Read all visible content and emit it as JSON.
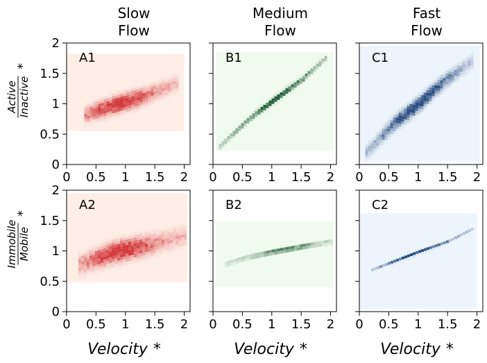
{
  "chart_data": {
    "type": "heatmap",
    "columns": [
      {
        "title_line1": "Slow",
        "title_line2": "Flow",
        "color": "#cb181d",
        "light": "#fee0d2"
      },
      {
        "title_line1": "Medium",
        "title_line2": "Flow",
        "color": "#00441b",
        "light": "#e5f5e0"
      },
      {
        "title_line1": "Fast",
        "title_line2": "Flow",
        "color": "#08306b",
        "light": "#deebf7"
      }
    ],
    "rows": [
      {
        "ylabel_num": "Active",
        "ylabel_den": "Inactive",
        "star": "*"
      },
      {
        "ylabel_num": "Immobile",
        "ylabel_den": "Mobile",
        "star": "*"
      }
    ],
    "panels": [
      {
        "label": "A1",
        "bg_x": [
          0.0,
          2.0
        ],
        "bg_y": [
          0.55,
          1.82
        ],
        "trend": [
          [
            0.3,
            0.82
          ],
          [
            0.8,
            0.98
          ],
          [
            1.3,
            1.12
          ],
          [
            1.9,
            1.35
          ]
        ],
        "spread": 0.14,
        "peak_x": 0.9
      },
      {
        "label": "B1",
        "bg_x": [
          0.05,
          2.05
        ],
        "bg_y": [
          0.22,
          1.85
        ],
        "trend": [
          [
            0.1,
            0.3
          ],
          [
            0.6,
            0.75
          ],
          [
            1.0,
            1.05
          ],
          [
            1.5,
            1.4
          ],
          [
            1.9,
            1.75
          ]
        ],
        "spread": 0.05,
        "peak_x": 1.05
      },
      {
        "label": "C1",
        "bg_x": [
          0.0,
          2.05
        ],
        "bg_y": [
          0.05,
          1.95
        ],
        "trend": [
          [
            0.1,
            0.2
          ],
          [
            0.6,
            0.7
          ],
          [
            1.0,
            1.0
          ],
          [
            1.4,
            1.35
          ],
          [
            1.9,
            1.7
          ]
        ],
        "spread": 0.12,
        "peak_x": 0.95
      },
      {
        "label": "A2",
        "bg_x": [
          0.0,
          2.05
        ],
        "bg_y": [
          0.48,
          1.95
        ],
        "trend": [
          [
            0.2,
            0.78
          ],
          [
            0.8,
            0.98
          ],
          [
            1.3,
            1.08
          ],
          [
            2.0,
            1.25
          ]
        ],
        "spread": 0.17,
        "peak_x": 0.9
      },
      {
        "label": "B2",
        "bg_x": [
          0.05,
          2.05
        ],
        "bg_y": [
          0.4,
          1.48
        ],
        "trend": [
          [
            0.2,
            0.78
          ],
          [
            0.6,
            0.9
          ],
          [
            1.0,
            0.98
          ],
          [
            1.5,
            1.07
          ],
          [
            2.0,
            1.15
          ]
        ],
        "spread": 0.03,
        "peak_x": 1.2
      },
      {
        "label": "C2",
        "bg_x": [
          0.0,
          2.0
        ],
        "bg_y": [
          0.05,
          1.62
        ],
        "trend": [
          [
            0.2,
            0.68
          ],
          [
            0.6,
            0.83
          ],
          [
            1.0,
            0.98
          ],
          [
            1.5,
            1.15
          ],
          [
            1.9,
            1.35
          ]
        ],
        "spread": 0.025,
        "peak_x": 0.95
      }
    ],
    "xlim": [
      0,
      2.1
    ],
    "ylim": [
      0,
      2
    ],
    "xticks": [
      0,
      0.5,
      1,
      1.5,
      2
    ],
    "xtick_labels": [
      "0",
      "0.5",
      "1",
      "1.5",
      "2"
    ],
    "yticks": [
      0,
      0.5,
      1,
      1.5,
      2
    ],
    "ytick_labels": [
      "0",
      "0.5",
      "1",
      "1.5",
      "2"
    ],
    "xlabel": "Velocity",
    "xlabel_star": "*"
  }
}
